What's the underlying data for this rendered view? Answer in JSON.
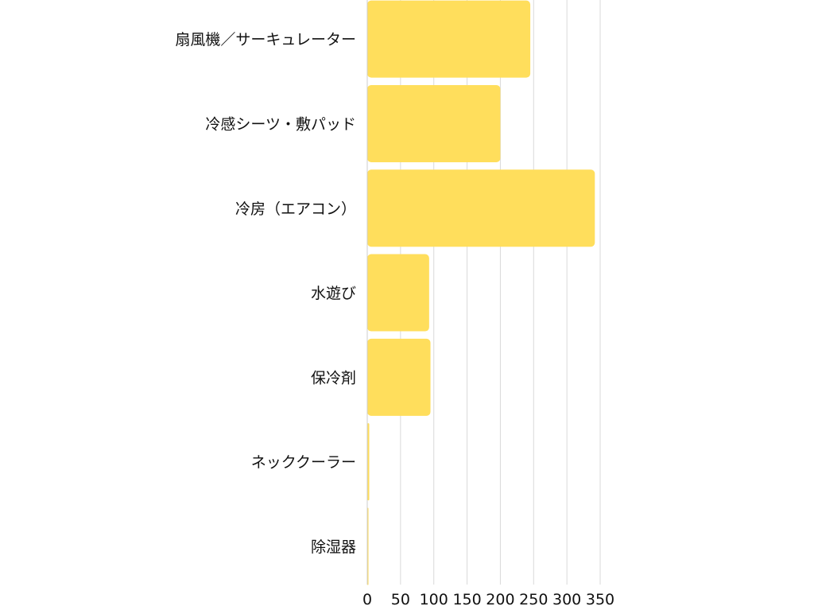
{
  "chart_data": {
    "type": "bar",
    "orientation": "horizontal",
    "categories": [
      "扇風機／サーキュレーター",
      "冷感シーツ・敷パッド",
      "冷房（エアコン）",
      "水遊び",
      "保冷剤",
      "ネッククーラー",
      "除湿器"
    ],
    "values": [
      245,
      200,
      342,
      93,
      95,
      3,
      1
    ],
    "xlim": [
      0,
      350
    ],
    "xticks": [
      "0",
      "50",
      "100",
      "150",
      "200",
      "250",
      "300",
      "350"
    ],
    "grid": true,
    "bar_color": "#FFDE5C",
    "title": "",
    "xlabel": "",
    "ylabel": ""
  }
}
